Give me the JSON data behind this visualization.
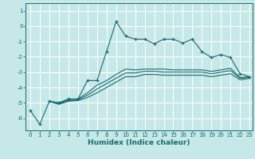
{
  "title": "",
  "xlabel": "Humidex (Indice chaleur)",
  "xlim": [
    -0.5,
    23.3
  ],
  "ylim": [
    -6.8,
    1.5
  ],
  "yticks": [
    1,
    0,
    -1,
    -2,
    -3,
    -4,
    -5,
    -6
  ],
  "xticks": [
    0,
    1,
    2,
    3,
    4,
    5,
    6,
    7,
    8,
    9,
    10,
    11,
    12,
    13,
    14,
    15,
    16,
    17,
    18,
    19,
    20,
    21,
    22,
    23
  ],
  "bg_color": "#c6e8e8",
  "line_color": "#1a6b6b",
  "lines": [
    {
      "x": [
        0,
        1,
        2,
        3,
        4,
        5,
        6,
        7,
        8,
        9,
        10,
        11,
        12,
        13,
        14,
        15,
        16,
        17,
        18,
        19,
        20,
        21,
        22,
        23
      ],
      "y": [
        -5.5,
        -6.4,
        -4.9,
        -5.0,
        -4.75,
        -4.75,
        -3.55,
        -3.55,
        -1.65,
        0.3,
        -0.65,
        -0.85,
        -0.85,
        -1.15,
        -0.85,
        -0.85,
        -1.1,
        -0.85,
        -1.65,
        -2.05,
        -1.85,
        -2.05,
        -3.1,
        -3.3
      ],
      "marker": "+"
    },
    {
      "x": [
        2,
        3,
        4,
        5,
        6,
        7,
        8,
        9,
        10,
        11,
        12,
        13,
        14,
        15,
        16,
        17,
        18,
        19,
        20,
        21,
        22,
        23
      ],
      "y": [
        -4.9,
        -5.0,
        -4.8,
        -4.75,
        -4.35,
        -3.85,
        -3.55,
        -3.15,
        -2.8,
        -2.85,
        -2.8,
        -2.8,
        -2.8,
        -2.85,
        -2.85,
        -2.85,
        -2.85,
        -2.95,
        -2.85,
        -2.75,
        -3.35,
        -3.3
      ],
      "marker": null
    },
    {
      "x": [
        2,
        3,
        4,
        5,
        6,
        7,
        8,
        9,
        10,
        11,
        12,
        13,
        14,
        15,
        16,
        17,
        18,
        19,
        20,
        21,
        22,
        23
      ],
      "y": [
        -4.9,
        -5.05,
        -4.85,
        -4.8,
        -4.5,
        -4.1,
        -3.75,
        -3.4,
        -3.05,
        -3.05,
        -2.95,
        -2.95,
        -3.0,
        -3.0,
        -3.0,
        -3.0,
        -3.0,
        -3.1,
        -3.0,
        -2.9,
        -3.4,
        -3.35
      ],
      "marker": null
    },
    {
      "x": [
        2,
        3,
        4,
        5,
        6,
        7,
        8,
        9,
        10,
        11,
        12,
        13,
        14,
        15,
        16,
        17,
        18,
        19,
        20,
        21,
        22,
        23
      ],
      "y": [
        -4.9,
        -5.1,
        -4.9,
        -4.85,
        -4.65,
        -4.35,
        -4.0,
        -3.65,
        -3.3,
        -3.3,
        -3.15,
        -3.15,
        -3.2,
        -3.2,
        -3.2,
        -3.2,
        -3.2,
        -3.3,
        -3.2,
        -3.1,
        -3.5,
        -3.4
      ],
      "marker": null
    }
  ]
}
